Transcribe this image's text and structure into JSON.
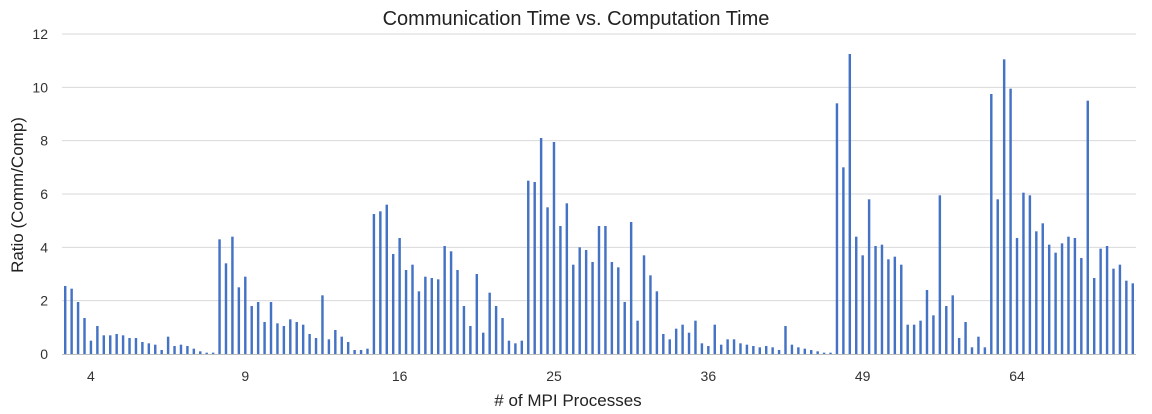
{
  "chart_data": {
    "type": "bar",
    "title": "Communication Time vs. Computation Time",
    "xlabel": "# of MPI Processes",
    "ylabel": "Ratio (Comm/Comp)",
    "ylim": [
      0,
      12
    ],
    "yticks": [
      0,
      2,
      4,
      6,
      8,
      10,
      12
    ],
    "grid": true,
    "bar_color": "#4472c4",
    "x_tick_labels": [
      {
        "label": "4",
        "index": 4
      },
      {
        "label": "9",
        "index": 28
      },
      {
        "label": "16",
        "index": 52
      },
      {
        "label": "25",
        "index": 76
      },
      {
        "label": "36",
        "index": 100
      },
      {
        "label": "49",
        "index": 124
      },
      {
        "label": "64",
        "index": 148
      }
    ],
    "values": [
      2.55,
      2.45,
      1.95,
      1.35,
      0.5,
      1.05,
      0.7,
      0.7,
      0.75,
      0.7,
      0.6,
      0.6,
      0.45,
      0.4,
      0.35,
      0.15,
      0.65,
      0.3,
      0.35,
      0.3,
      0.2,
      0.1,
      0.05,
      0.05,
      4.3,
      3.4,
      4.4,
      2.5,
      2.9,
      1.8,
      1.95,
      1.2,
      1.95,
      1.15,
      1.05,
      1.3,
      1.2,
      1.1,
      0.75,
      0.6,
      2.2,
      0.55,
      0.9,
      0.65,
      0.45,
      0.15,
      0.15,
      0.2,
      5.25,
      5.35,
      5.6,
      3.75,
      4.35,
      3.15,
      3.35,
      2.35,
      2.9,
      2.85,
      2.8,
      4.05,
      3.85,
      3.15,
      1.8,
      1.05,
      3.0,
      0.8,
      2.3,
      1.8,
      1.35,
      0.5,
      0.4,
      0.5,
      6.5,
      6.45,
      8.1,
      5.5,
      7.95,
      4.8,
      5.65,
      3.35,
      4.0,
      3.9,
      3.45,
      4.8,
      4.8,
      3.45,
      3.25,
      1.95,
      4.95,
      1.25,
      3.7,
      2.95,
      2.35,
      0.75,
      0.55,
      0.95,
      1.1,
      0.8,
      1.25,
      0.4,
      0.3,
      1.1,
      0.35,
      0.55,
      0.55,
      0.4,
      0.35,
      0.3,
      0.25,
      0.3,
      0.25,
      0.15,
      1.05,
      0.35,
      0.25,
      0.2,
      0.15,
      0.1,
      0.05,
      0.05,
      9.4,
      7.0,
      11.25,
      4.4,
      3.7,
      5.8,
      4.05,
      4.1,
      3.55,
      3.65,
      3.35,
      1.1,
      1.1,
      1.25,
      2.4,
      1.45,
      5.95,
      1.8,
      2.2,
      0.6,
      1.2,
      0.25,
      0.65,
      0.25,
      9.75,
      5.8,
      11.05,
      9.95,
      4.35,
      6.05,
      5.95,
      4.6,
      4.9,
      4.1,
      3.8,
      4.15,
      4.4,
      4.35,
      3.6,
      9.5,
      2.85,
      3.95,
      4.05,
      3.2,
      3.35,
      2.75,
      2.65
    ]
  }
}
